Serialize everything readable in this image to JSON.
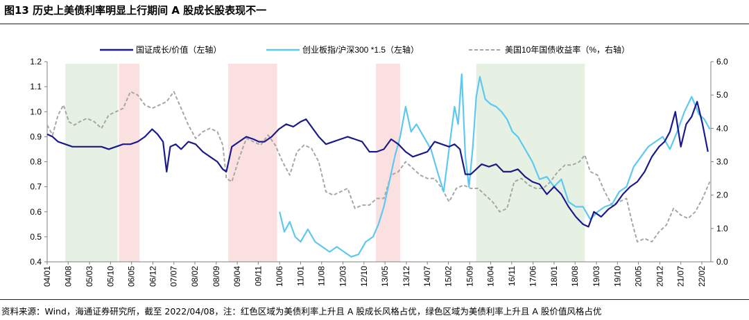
{
  "title": "图13 历史上美债利率明显上行期间 A 股成长股表现不一",
  "source": "资料来源：Wind，海通证券研究所，截至 2022/04/08，注：红色区域为美债利率上升且 A 股成长风格占优，绿色区域为美债利率上升且 A 股价值风格占优",
  "colors": {
    "growth_value": "#1a1a8c",
    "chinext": "#5ec8f0",
    "ust10y": "#a6a6a6",
    "red_band": "#fbe0e0",
    "green_band": "#e6f1e3"
  },
  "chart_data": {
    "type": "line",
    "title": "",
    "xlabel": "",
    "ylabel_left": "",
    "ylabel_right": "",
    "x_range": [
      2004.0,
      2022.33
    ],
    "ylim_left": [
      0.4,
      1.2
    ],
    "ylim_right": [
      0.0,
      6.0
    ],
    "yticks_left": [
      "0.4",
      "0.5",
      "0.6",
      "0.7",
      "0.8",
      "0.9",
      "1.0",
      "1.1",
      "1.2"
    ],
    "yticks_right": [
      "0.0",
      "1.0",
      "2.0",
      "3.0",
      "4.0",
      "5.0",
      "6.0"
    ],
    "xticks": [
      {
        "label": "04/01",
        "t": 2004.0
      },
      {
        "label": "04/08",
        "t": 2004.58
      },
      {
        "label": "05/03",
        "t": 2005.17
      },
      {
        "label": "05/10",
        "t": 2005.75
      },
      {
        "label": "06/05",
        "t": 2006.33
      },
      {
        "label": "06/12",
        "t": 2006.92
      },
      {
        "label": "07/07",
        "t": 2007.5
      },
      {
        "label": "08/02",
        "t": 2008.08
      },
      {
        "label": "08/09",
        "t": 2008.67
      },
      {
        "label": "09/04",
        "t": 2009.25
      },
      {
        "label": "09/11",
        "t": 2009.83
      },
      {
        "label": "10/06",
        "t": 2010.42
      },
      {
        "label": "11/01",
        "t": 2011.0
      },
      {
        "label": "11/08",
        "t": 2011.58
      },
      {
        "label": "12/03",
        "t": 2012.17
      },
      {
        "label": "12/10",
        "t": 2012.75
      },
      {
        "label": "13/05",
        "t": 2013.33
      },
      {
        "label": "13/12",
        "t": 2013.92
      },
      {
        "label": "14/07",
        "t": 2014.5
      },
      {
        "label": "15/02",
        "t": 2015.08
      },
      {
        "label": "15/09",
        "t": 2015.67
      },
      {
        "label": "16/04",
        "t": 2016.25
      },
      {
        "label": "16/11",
        "t": 2016.83
      },
      {
        "label": "17/06",
        "t": 2017.42
      },
      {
        "label": "18/01",
        "t": 2018.0
      },
      {
        "label": "18/08",
        "t": 2018.58
      },
      {
        "label": "19/03",
        "t": 2019.17
      },
      {
        "label": "19/10",
        "t": 2019.75
      },
      {
        "label": "20/05",
        "t": 2020.33
      },
      {
        "label": "20/12",
        "t": 2020.92
      },
      {
        "label": "21/07",
        "t": 2021.5
      },
      {
        "label": "22/02",
        "t": 2022.08
      }
    ],
    "shaded_regions": [
      {
        "start": 2004.5,
        "end": 2005.95,
        "color": "green",
        "meaning": "美债利率上升且A股价值风格占优"
      },
      {
        "start": 2005.98,
        "end": 2006.55,
        "color": "red",
        "meaning": "美债利率上升且A股成长风格占优"
      },
      {
        "start": 2009.0,
        "end": 2010.35,
        "color": "red",
        "meaning": "美债利率上升且A股成长风格占优"
      },
      {
        "start": 2013.08,
        "end": 2013.75,
        "color": "red",
        "meaning": "美债利率上升且A股成长风格占优"
      },
      {
        "start": 2015.85,
        "end": 2018.85,
        "color": "green",
        "meaning": "美债利率上升且A股价值风格占优"
      }
    ],
    "series": [
      {
        "name": "国证成长/价值（左轴）",
        "axis": "left",
        "style": "solid",
        "x": [
          2004.0,
          2004.15,
          2004.3,
          2004.5,
          2004.7,
          2004.9,
          2005.1,
          2005.3,
          2005.5,
          2005.7,
          2005.9,
          2006.1,
          2006.3,
          2006.5,
          2006.7,
          2006.9,
          2007.05,
          2007.2,
          2007.3,
          2007.4,
          2007.55,
          2007.7,
          2007.9,
          2008.1,
          2008.3,
          2008.5,
          2008.7,
          2008.85,
          2008.95,
          2009.1,
          2009.3,
          2009.5,
          2009.7,
          2009.85,
          2010.0,
          2010.2,
          2010.4,
          2010.6,
          2010.8,
          2011.0,
          2011.15,
          2011.3,
          2011.5,
          2011.7,
          2011.9,
          2012.1,
          2012.3,
          2012.5,
          2012.7,
          2012.9,
          2013.1,
          2013.3,
          2013.5,
          2013.7,
          2013.9,
          2014.1,
          2014.3,
          2014.5,
          2014.7,
          2014.9,
          2015.1,
          2015.25,
          2015.4,
          2015.55,
          2015.7,
          2015.85,
          2016.0,
          2016.2,
          2016.4,
          2016.6,
          2016.8,
          2017.0,
          2017.2,
          2017.4,
          2017.6,
          2017.8,
          2018.0,
          2018.2,
          2018.4,
          2018.6,
          2018.8,
          2018.95,
          2019.1,
          2019.3,
          2019.5,
          2019.7,
          2019.9,
          2020.1,
          2020.3,
          2020.5,
          2020.7,
          2020.9,
          2021.05,
          2021.2,
          2021.35,
          2021.5,
          2021.65,
          2021.8,
          2021.95,
          2022.1,
          2022.25
        ],
        "values": [
          0.91,
          0.9,
          0.88,
          0.87,
          0.86,
          0.86,
          0.86,
          0.86,
          0.86,
          0.85,
          0.86,
          0.87,
          0.87,
          0.88,
          0.9,
          0.93,
          0.91,
          0.88,
          0.76,
          0.86,
          0.87,
          0.85,
          0.88,
          0.87,
          0.84,
          0.82,
          0.8,
          0.77,
          0.76,
          0.86,
          0.88,
          0.9,
          0.89,
          0.88,
          0.88,
          0.9,
          0.93,
          0.95,
          0.94,
          0.96,
          0.97,
          0.94,
          0.9,
          0.87,
          0.88,
          0.89,
          0.9,
          0.89,
          0.88,
          0.84,
          0.84,
          0.85,
          0.89,
          0.87,
          0.84,
          0.82,
          0.83,
          0.84,
          0.88,
          0.87,
          0.86,
          0.87,
          0.85,
          0.75,
          0.75,
          0.77,
          0.79,
          0.78,
          0.79,
          0.76,
          0.76,
          0.77,
          0.74,
          0.72,
          0.71,
          0.67,
          0.7,
          0.67,
          0.62,
          0.58,
          0.55,
          0.54,
          0.6,
          0.58,
          0.61,
          0.63,
          0.67,
          0.7,
          0.72,
          0.76,
          0.82,
          0.86,
          0.88,
          0.92,
          1.0,
          0.86,
          0.95,
          0.98,
          1.04,
          0.95,
          0.84
        ]
      },
      {
        "name": "创业板指/沪深300 *1.5（左轴）",
        "axis": "left",
        "style": "solid",
        "x": [
          2010.42,
          2010.55,
          2010.7,
          2010.85,
          2011.0,
          2011.2,
          2011.4,
          2011.6,
          2011.8,
          2012.0,
          2012.2,
          2012.4,
          2012.6,
          2012.8,
          2013.0,
          2013.15,
          2013.3,
          2013.45,
          2013.6,
          2013.75,
          2013.9,
          2014.05,
          2014.2,
          2014.4,
          2014.6,
          2014.8,
          2014.95,
          2015.1,
          2015.25,
          2015.35,
          2015.45,
          2015.55,
          2015.65,
          2015.75,
          2015.85,
          2015.95,
          2016.1,
          2016.25,
          2016.4,
          2016.55,
          2016.7,
          2016.85,
          2017.0,
          2017.2,
          2017.4,
          2017.6,
          2017.8,
          2018.0,
          2018.2,
          2018.4,
          2018.6,
          2018.8,
          2019.0,
          2019.2,
          2019.4,
          2019.6,
          2019.8,
          2020.0,
          2020.2,
          2020.4,
          2020.6,
          2020.8,
          2021.0,
          2021.2,
          2021.4,
          2021.6,
          2021.8,
          2022.0,
          2022.15,
          2022.3
        ],
        "values": [
          0.6,
          0.52,
          0.56,
          0.5,
          0.48,
          0.53,
          0.48,
          0.46,
          0.44,
          0.46,
          0.44,
          0.42,
          0.43,
          0.48,
          0.5,
          0.55,
          0.62,
          0.72,
          0.82,
          0.9,
          1.02,
          0.92,
          0.95,
          0.9,
          0.85,
          0.75,
          0.68,
          0.85,
          1.02,
          0.95,
          1.15,
          0.82,
          0.7,
          0.85,
          1.06,
          1.14,
          1.05,
          1.03,
          1.02,
          1.0,
          0.97,
          0.92,
          0.9,
          0.85,
          0.8,
          0.73,
          0.74,
          0.7,
          0.73,
          0.64,
          0.62,
          0.62,
          0.57,
          0.6,
          0.62,
          0.63,
          0.68,
          0.7,
          0.78,
          0.82,
          0.86,
          0.88,
          0.9,
          0.85,
          0.92,
          1.0,
          1.06,
          0.99,
          0.97,
          0.93
        ]
      },
      {
        "name": "美国10年国债收益率（%，右轴）",
        "axis": "right",
        "style": "dashed",
        "x": [
          2004.0,
          2004.15,
          2004.3,
          2004.45,
          2004.6,
          2004.75,
          2004.9,
          2005.1,
          2005.3,
          2005.5,
          2005.7,
          2005.9,
          2006.1,
          2006.3,
          2006.5,
          2006.7,
          2006.9,
          2007.1,
          2007.3,
          2007.5,
          2007.7,
          2007.9,
          2008.1,
          2008.3,
          2008.5,
          2008.7,
          2008.85,
          2008.95,
          2009.1,
          2009.3,
          2009.5,
          2009.7,
          2009.9,
          2010.1,
          2010.3,
          2010.5,
          2010.7,
          2010.9,
          2011.1,
          2011.3,
          2011.5,
          2011.7,
          2011.9,
          2012.1,
          2012.3,
          2012.5,
          2012.7,
          2012.9,
          2013.1,
          2013.3,
          2013.5,
          2013.7,
          2013.9,
          2014.1,
          2014.3,
          2014.5,
          2014.7,
          2014.9,
          2015.1,
          2015.3,
          2015.5,
          2015.7,
          2015.9,
          2016.1,
          2016.3,
          2016.5,
          2016.7,
          2016.9,
          2017.1,
          2017.3,
          2017.5,
          2017.7,
          2017.9,
          2018.1,
          2018.3,
          2018.5,
          2018.7,
          2018.85,
          2019.0,
          2019.2,
          2019.4,
          2019.6,
          2019.8,
          2020.0,
          2020.15,
          2020.3,
          2020.5,
          2020.7,
          2020.9,
          2021.1,
          2021.3,
          2021.5,
          2021.7,
          2021.9,
          2022.1,
          2022.3
        ],
        "values": [
          4.1,
          3.8,
          4.4,
          4.7,
          4.2,
          4.1,
          4.2,
          4.3,
          4.2,
          4.0,
          4.4,
          4.5,
          4.6,
          5.1,
          5.0,
          4.7,
          4.6,
          4.7,
          4.8,
          5.1,
          4.6,
          4.1,
          3.7,
          3.9,
          4.0,
          3.9,
          3.5,
          2.5,
          2.4,
          3.1,
          3.7,
          3.6,
          3.5,
          3.8,
          3.5,
          3.0,
          2.6,
          3.3,
          3.5,
          3.4,
          3.0,
          2.1,
          2.0,
          2.1,
          2.2,
          1.6,
          1.7,
          1.7,
          1.9,
          1.9,
          2.6,
          2.7,
          3.0,
          2.8,
          2.6,
          2.5,
          2.5,
          2.2,
          1.8,
          2.2,
          2.3,
          2.2,
          2.2,
          2.0,
          1.8,
          1.5,
          1.6,
          2.4,
          2.5,
          2.3,
          2.2,
          2.2,
          2.4,
          2.7,
          2.9,
          2.9,
          3.0,
          3.2,
          2.7,
          2.6,
          2.1,
          1.7,
          1.8,
          1.9,
          1.2,
          0.6,
          0.7,
          0.6,
          0.9,
          1.1,
          1.6,
          1.4,
          1.3,
          1.5,
          1.9,
          2.4
        ]
      }
    ]
  }
}
